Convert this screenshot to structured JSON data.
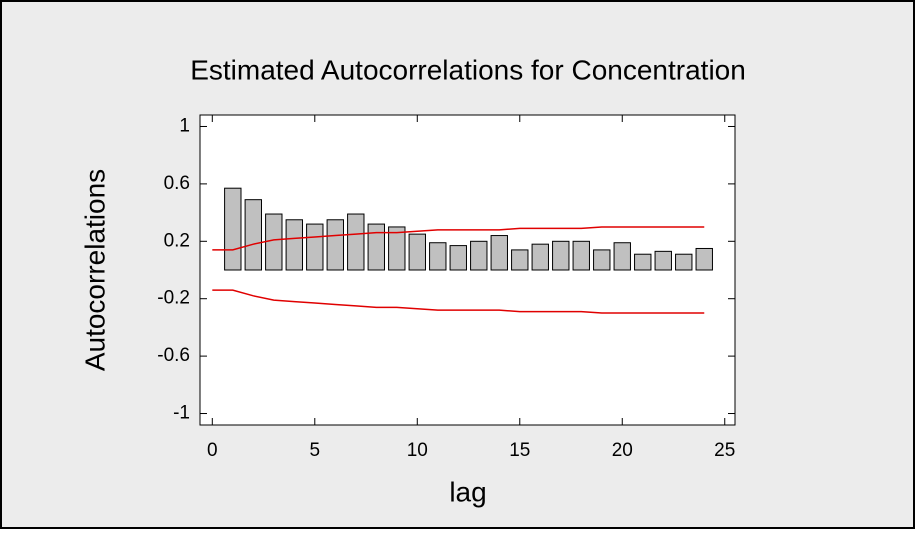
{
  "chart_data": {
    "type": "bar",
    "title": "Estimated Autocorrelations for Concentration",
    "x_label": "lag",
    "y_label": "Autocorrelations",
    "x": [
      1,
      2,
      3,
      4,
      5,
      6,
      7,
      8,
      9,
      10,
      11,
      12,
      13,
      14,
      15,
      16,
      17,
      18,
      19,
      20,
      21,
      22,
      23,
      24
    ],
    "values": [
      0.57,
      0.49,
      0.39,
      0.35,
      0.32,
      0.35,
      0.39,
      0.32,
      0.3,
      0.25,
      0.19,
      0.17,
      0.2,
      0.24,
      0.14,
      0.18,
      0.2,
      0.2,
      0.14,
      0.19,
      0.11,
      0.13,
      0.11,
      0.15
    ],
    "color": "#c0c0c0",
    "limit_x": [
      0,
      1,
      2,
      3,
      4,
      5,
      6,
      7,
      8,
      9,
      10,
      11,
      12,
      13,
      14,
      15,
      16,
      17,
      18,
      19,
      20,
      21,
      22,
      23,
      24
    ],
    "upper_limit": [
      0.14,
      0.14,
      0.18,
      0.21,
      0.22,
      0.23,
      0.24,
      0.25,
      0.26,
      0.26,
      0.27,
      0.28,
      0.28,
      0.28,
      0.28,
      0.29,
      0.29,
      0.29,
      0.29,
      0.3,
      0.3,
      0.3,
      0.3,
      0.3,
      0.3
    ],
    "lower_limit": [
      -0.14,
      -0.14,
      -0.18,
      -0.21,
      -0.22,
      -0.23,
      -0.24,
      -0.25,
      -0.26,
      -0.26,
      -0.27,
      -0.28,
      -0.28,
      -0.28,
      -0.28,
      -0.29,
      -0.29,
      -0.29,
      -0.29,
      -0.3,
      -0.3,
      -0.3,
      -0.3,
      -0.3,
      -0.3
    ],
    "limit_color": "#e00000",
    "xlim": [
      -0.6,
      25.5
    ],
    "xticks": [
      0,
      5,
      10,
      15,
      20,
      25
    ],
    "ylim": [
      -1.08,
      1.08
    ],
    "yticks": [
      -1,
      -0.6,
      -0.2,
      0.2,
      0.6,
      1
    ]
  }
}
